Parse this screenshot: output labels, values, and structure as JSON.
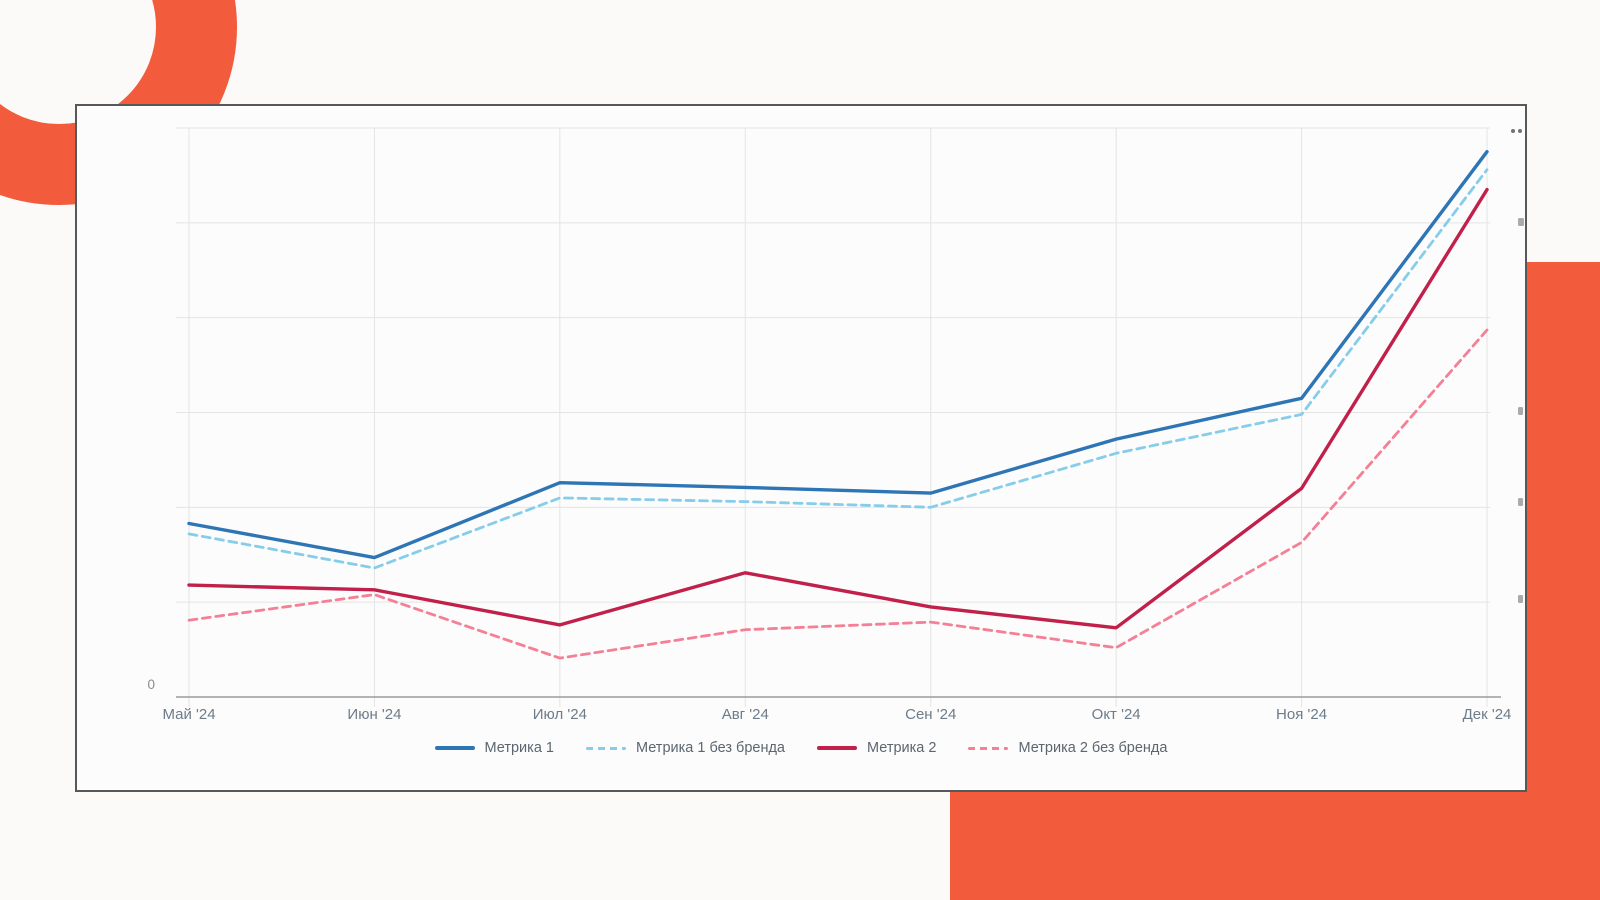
{
  "slide": {
    "background_color": "#fbfaf9",
    "accent_orange": "#f25b3b",
    "panel_border_color": "#57585a",
    "panel_background": "#fcfcfc",
    "gridline_color": "#e4e4e4",
    "axis_line_color": "#9c9c9c",
    "axis_text_color": "#6e7b88",
    "legend_text_color": "#5c6670"
  },
  "chart_data": {
    "type": "line",
    "title": "",
    "xlabel": "",
    "ylabel": "",
    "categories": [
      "Май '24",
      "Июн '24",
      "Июл '24",
      "Авг '24",
      "Сен '24",
      "Окт '24",
      "Ноя '24",
      "Дек '24"
    ],
    "series": [
      {
        "name": "Метрика 1",
        "color": "#2e75b6",
        "style": "solid",
        "values": [
          1.83,
          1.47,
          2.26,
          2.21,
          2.15,
          2.72,
          3.15,
          5.75
        ]
      },
      {
        "name": "Метрика 1 без бренда",
        "color": "#86cdea",
        "style": "dashed",
        "values": [
          1.72,
          1.36,
          2.1,
          2.06,
          2.0,
          2.57,
          2.98,
          5.56
        ]
      },
      {
        "name": "Метрика 2",
        "color": "#c0204a",
        "style": "solid",
        "values": [
          1.18,
          1.13,
          0.76,
          1.31,
          0.95,
          0.73,
          2.2,
          5.35
        ]
      },
      {
        "name": "Метрика 2 без бренда",
        "color": "#f57f95",
        "style": "dashed",
        "values": [
          0.81,
          1.08,
          0.41,
          0.71,
          0.79,
          0.52,
          1.63,
          3.87
        ]
      }
    ],
    "ylim": [
      0,
      6
    ],
    "y_gridline_step": 1,
    "y_tick_labels_visible": [
      "0"
    ],
    "y_zero_label": "0",
    "grid": true,
    "legend_position": "bottom"
  }
}
